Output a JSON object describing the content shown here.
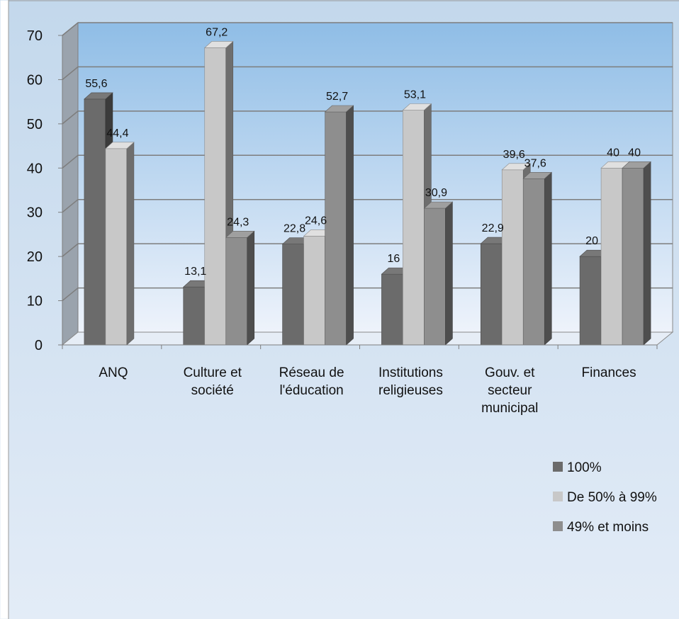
{
  "chart_data": {
    "type": "bar",
    "title": "",
    "xlabel": "",
    "ylabel": "",
    "ylim": [
      0,
      70
    ],
    "yticks": [
      0,
      10,
      20,
      30,
      40,
      50,
      60,
      70
    ],
    "grid": true,
    "legend_position": "right",
    "categories": [
      [
        "ANQ"
      ],
      [
        "Culture et",
        "société"
      ],
      [
        "Réseau de",
        "l'éducation"
      ],
      [
        "Institutions",
        "religieuses"
      ],
      [
        "Gouv. et",
        "secteur",
        "municipal"
      ],
      [
        "Finances"
      ]
    ],
    "series": [
      {
        "name": "100%",
        "color": "#6b6b6b",
        "values": [
          55.6,
          13.1,
          22.8,
          16,
          22.9,
          20
        ],
        "labels": [
          "55,6",
          "13,1",
          "22,8",
          "16",
          "22,9",
          "20"
        ]
      },
      {
        "name": "De 50% à 99%",
        "color": "#c8c8c8",
        "values": [
          44.4,
          67.2,
          24.6,
          53.1,
          39.6,
          40
        ],
        "labels": [
          "44,4",
          "67,2",
          "24,6",
          "53,1",
          "39,6",
          "40"
        ]
      },
      {
        "name": "49% et moins",
        "color": "#8e8e8e",
        "values": [
          null,
          24.3,
          52.7,
          30.9,
          37.6,
          40
        ],
        "labels": [
          null,
          "24,3",
          "52,7",
          "30,9",
          "37,6",
          "40"
        ]
      }
    ]
  }
}
